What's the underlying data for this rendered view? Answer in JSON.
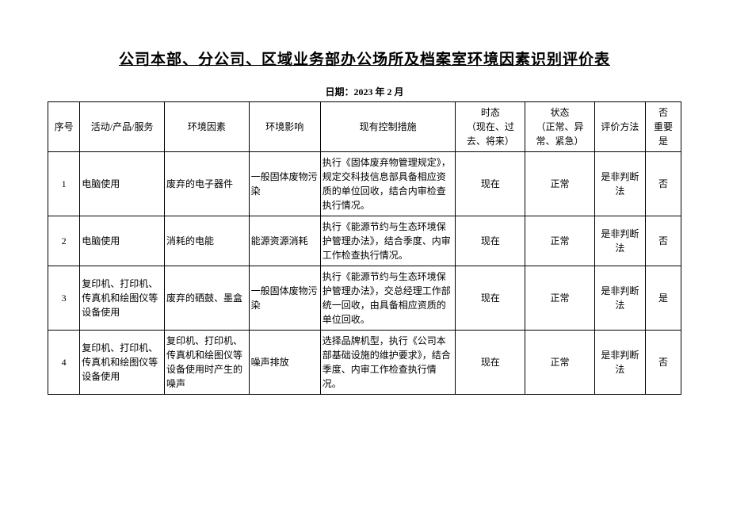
{
  "title": "公司本部、分公司、区域业务部办公场所及档案室环境因素识别评价表",
  "date_label": "日期：2023 年 2 月",
  "columns": {
    "seq": "序号",
    "activity": "活动/产品/服务",
    "factor": "环境因素",
    "impact": "环境影响",
    "control": "现有控制措施",
    "time": "时态\n（现在、过去、将来）",
    "state": "状态\n（正常、异常、紧急）",
    "method": "评价方法",
    "important_h1": "否",
    "important_h2": "重要",
    "important_h3": "是"
  },
  "rows": [
    {
      "seq": "1",
      "activity": "电脑使用",
      "factor": "废弃的电子器件",
      "impact": "一般固体废物污染",
      "control": "执行《固体废弃物管理规定》，规定交科技信息部具备相应资质的单位回收，结合内审检查执行情况。",
      "time": "现在",
      "state": "正常",
      "method": "是非判断法",
      "important": "否"
    },
    {
      "seq": "2",
      "activity": "电脑使用",
      "factor": "消耗的电能",
      "impact": "能源资源消耗",
      "control": "执行《能源节约与生态环境保护管理办法》，结合季度、内审工作检查执行情况。",
      "time": "现在",
      "state": "正常",
      "method": "是非判断法",
      "important": "否"
    },
    {
      "seq": "3",
      "activity": "复印机、打印机、传真机和绘图仪等设备使用",
      "factor": "废弃的硒鼓、墨盒",
      "impact": "一般固体废物污染",
      "control": "执行《能源节约与生态环境保护管理办法》，交总经理工作部统一回收，由具备相应资质的单位回收。",
      "time": "现在",
      "state": "正常",
      "method": "是非判断法",
      "important": "是"
    },
    {
      "seq": "4",
      "activity": "复印机、打印机、传真机和绘图仪等设备使用",
      "factor": "复印机、打印机、传真机和绘图仪等设备使用时产生的噪声",
      "impact": "噪声排放",
      "control": "选择品牌机型，执行《公司本部基础设施的维护要求》，结合季度、内审工作检查执行情况。",
      "time": "现在",
      "state": "正常",
      "method": "是非判断法",
      "important": "否"
    }
  ],
  "styling": {
    "background_color": "#ffffff",
    "border_color": "#000000",
    "font_family": "SimSun",
    "title_fontsize": 19,
    "cell_fontsize": 12,
    "date_fontsize": 12
  }
}
